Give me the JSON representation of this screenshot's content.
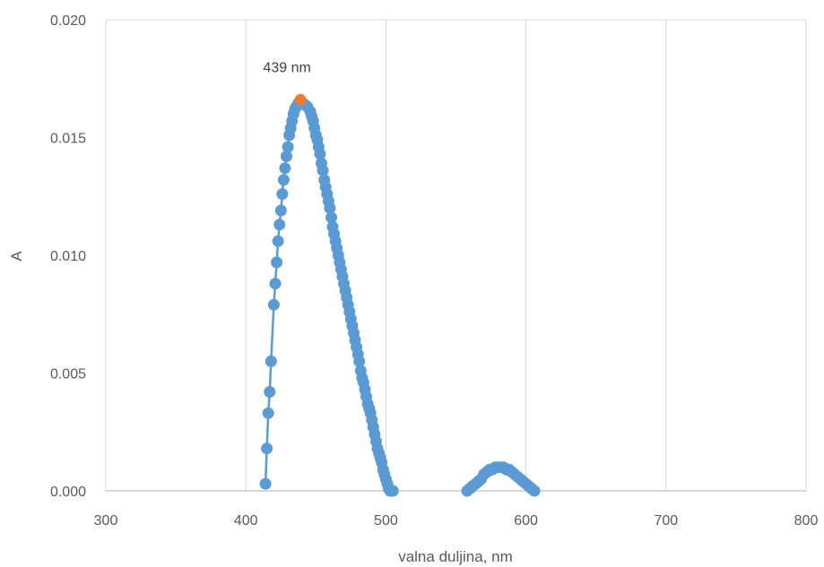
{
  "chart_data": {
    "type": "scatter",
    "xlabel": "valna duljina, nm",
    "ylabel": "A",
    "xlim": [
      300,
      800
    ],
    "ylim": [
      0,
      0.02
    ],
    "x_ticks": [
      300,
      400,
      500,
      600,
      700,
      800
    ],
    "y_ticks": [
      "0.000",
      "0.005",
      "0.010",
      "0.015",
      "0.020"
    ],
    "grid": "vertical",
    "legend": "none",
    "series": [
      {
        "color": "#5B9BD5",
        "style": "line-with-markers",
        "segments": [
          [
            [
              414,
              0.0003
            ],
            [
              415,
              0.0018
            ],
            [
              416,
              0.0033
            ],
            [
              417,
              0.0042
            ],
            [
              418,
              0.0055
            ],
            [
              420,
              0.0079
            ],
            [
              421,
              0.0088
            ],
            [
              422,
              0.0097
            ],
            [
              423,
              0.0106
            ],
            [
              424,
              0.0113
            ],
            [
              425,
              0.0119
            ],
            [
              426,
              0.0126
            ],
            [
              427,
              0.0132
            ],
            [
              428,
              0.0137
            ],
            [
              429,
              0.0142
            ],
            [
              430,
              0.0146
            ],
            [
              431,
              0.0151
            ],
            [
              432,
              0.0154
            ],
            [
              433,
              0.0157
            ],
            [
              434,
              0.016
            ],
            [
              435,
              0.0162
            ],
            [
              436,
              0.0163
            ],
            [
              437,
              0.0164
            ],
            [
              438,
              0.0165
            ],
            [
              440,
              0.0165
            ],
            [
              442,
              0.0164
            ],
            [
              444,
              0.0163
            ],
            [
              446,
              0.0161
            ],
            [
              447,
              0.0159
            ],
            [
              448,
              0.0157
            ],
            [
              449,
              0.0154
            ],
            [
              450,
              0.0151
            ],
            [
              451,
              0.0149
            ],
            [
              452,
              0.0146
            ],
            [
              453,
              0.0143
            ],
            [
              454,
              0.0139
            ],
            [
              455,
              0.0136
            ],
            [
              456,
              0.0132
            ],
            [
              457,
              0.0129
            ],
            [
              458,
              0.0126
            ],
            [
              459,
              0.0123
            ],
            [
              460,
              0.012
            ],
            [
              461,
              0.0116
            ],
            [
              462,
              0.0112
            ],
            [
              463,
              0.0109
            ],
            [
              464,
              0.0106
            ],
            [
              465,
              0.0103
            ],
            [
              466,
              0.01
            ],
            [
              467,
              0.0097
            ],
            [
              468,
              0.0094
            ],
            [
              469,
              0.0091
            ],
            [
              470,
              0.0088
            ],
            [
              471,
              0.0085
            ],
            [
              472,
              0.0082
            ],
            [
              473,
              0.0079
            ],
            [
              474,
              0.0076
            ],
            [
              475,
              0.0073
            ],
            [
              476,
              0.007
            ],
            [
              477,
              0.0067
            ],
            [
              478,
              0.0064
            ],
            [
              479,
              0.0061
            ],
            [
              480,
              0.0058
            ],
            [
              481,
              0.0055
            ],
            [
              482,
              0.0051
            ],
            [
              483,
              0.0048
            ],
            [
              484,
              0.0046
            ],
            [
              485,
              0.0043
            ],
            [
              486,
              0.004
            ],
            [
              487,
              0.0037
            ],
            [
              488,
              0.0035
            ],
            [
              489,
              0.0033
            ],
            [
              490,
              0.003
            ],
            [
              491,
              0.0027
            ],
            [
              492,
              0.0024
            ],
            [
              493,
              0.0021
            ],
            [
              494,
              0.0018
            ],
            [
              495,
              0.0016
            ],
            [
              496,
              0.0014
            ],
            [
              497,
              0.0012
            ],
            [
              498,
              0.0009
            ],
            [
              499,
              0.0007
            ],
            [
              500,
              0.0005
            ],
            [
              501,
              0.0003
            ],
            [
              502,
              0.0001
            ],
            [
              503,
              0.0
            ],
            [
              505,
              0.0
            ]
          ],
          [
            [
              558,
              0.0
            ],
            [
              560,
              0.0001
            ],
            [
              562,
              0.0002
            ],
            [
              564,
              0.0003
            ],
            [
              566,
              0.0004
            ],
            [
              568,
              0.0005
            ],
            [
              570,
              0.0007
            ],
            [
              572,
              0.0008
            ],
            [
              574,
              0.0009
            ],
            [
              576,
              0.0009
            ],
            [
              578,
              0.001
            ],
            [
              580,
              0.001
            ],
            [
              582,
              0.001
            ],
            [
              584,
              0.001
            ],
            [
              586,
              0.0009
            ],
            [
              588,
              0.0009
            ],
            [
              590,
              0.0008
            ],
            [
              592,
              0.0007
            ],
            [
              594,
              0.0006
            ],
            [
              596,
              0.0005
            ],
            [
              598,
              0.0004
            ],
            [
              600,
              0.0003
            ],
            [
              602,
              0.0002
            ],
            [
              604,
              0.0001
            ],
            [
              606,
              0.0
            ]
          ]
        ]
      }
    ],
    "highlight_point": {
      "x": 439,
      "y": 0.0166,
      "color": "#ED7D31"
    },
    "annotation": {
      "text": "439 nm"
    }
  }
}
